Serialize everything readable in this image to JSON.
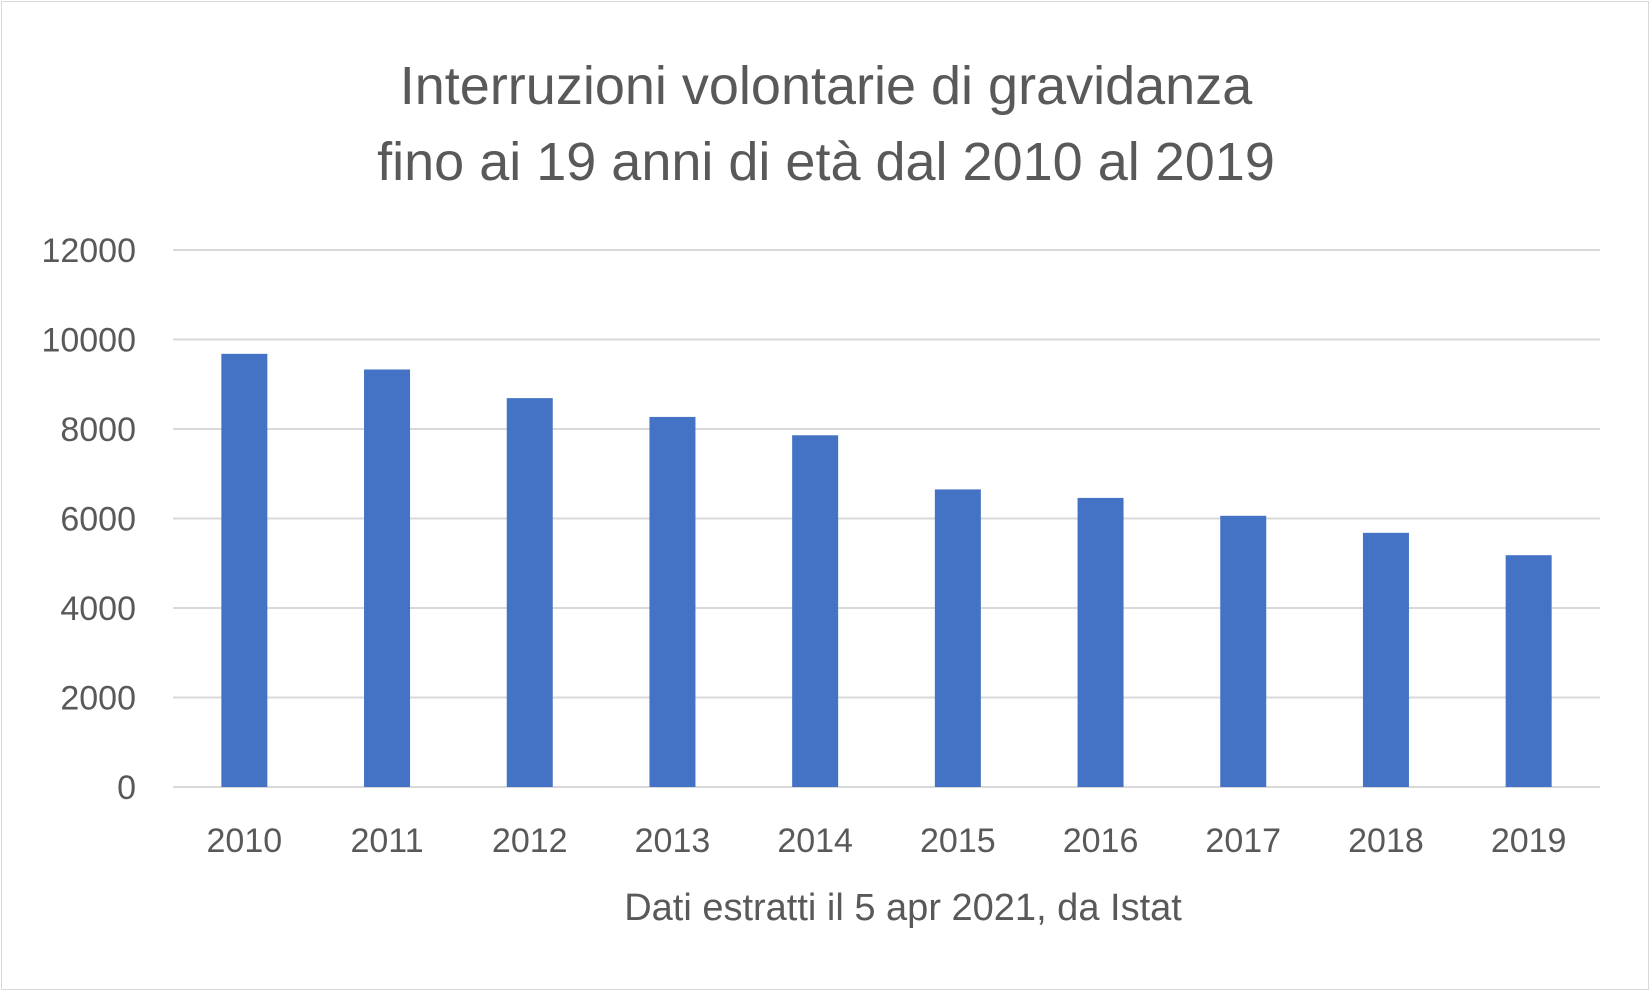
{
  "chart_data": {
    "type": "bar",
    "title_lines": [
      "Interruzioni volontarie di gravidanza",
      "fino ai 19 anni di età dal 2010 al 2019"
    ],
    "xlabel": "Dati estratti il 5 apr 2021, da Istat",
    "ylabel": "",
    "categories": [
      "2010",
      "2011",
      "2012",
      "2013",
      "2014",
      "2015",
      "2016",
      "2017",
      "2018",
      "2019"
    ],
    "values": [
      9680,
      9330,
      8690,
      8270,
      7860,
      6650,
      6460,
      6060,
      5680,
      5180
    ],
    "ylim": [
      0,
      12000
    ],
    "yticks": [
      "0",
      "2000",
      "4000",
      "6000",
      "8000",
      "10000",
      "12000"
    ],
    "grid": true,
    "legend": "none",
    "colors": {
      "bar": "#4472c4",
      "grid": "#d9d9d9",
      "text": "#595959"
    }
  }
}
